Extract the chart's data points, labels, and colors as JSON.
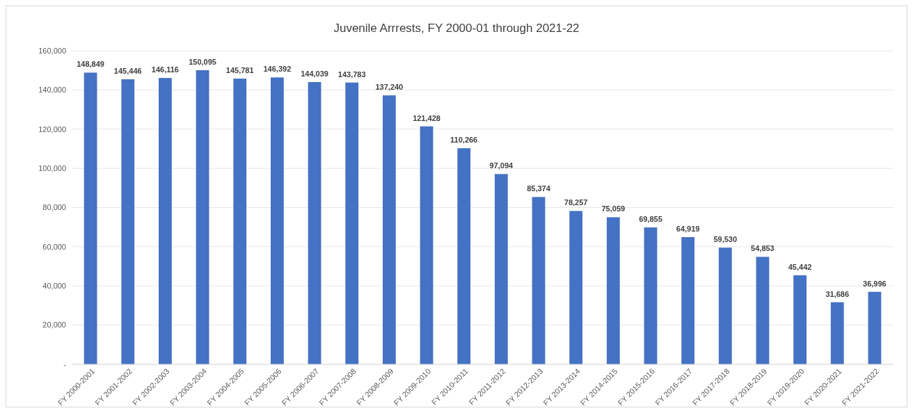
{
  "chart_data": {
    "type": "bar",
    "title": "Juvenile Arrrests, FY 2000-01 through 2021-22",
    "categories": [
      "FY 2000-2001",
      "FY 2001-2002",
      "FY 2002-2003",
      "FY 2003-2004",
      "FY 2004-2005",
      "FY 2005-2006",
      "FY 2006-2007",
      "FY 2007-2008",
      "FY 2008-2009",
      "FY 2009-2010",
      "FY 2010-2011",
      "FY 2011-2012",
      "FY 2012-2013",
      "FY 2013-2014",
      "FY 2014-2015",
      "FY 2015-2016",
      "FY 2016-2017",
      "FY 2017-2018",
      "FY 2018-2019",
      "FY 2019-2020",
      "FY 2020-2021",
      "FY 2021-2022"
    ],
    "values": [
      148849,
      145446,
      146116,
      150095,
      145781,
      146392,
      144039,
      143783,
      137240,
      121428,
      110266,
      97094,
      85374,
      78257,
      75059,
      69855,
      64919,
      59530,
      54853,
      45442,
      31686,
      36996
    ],
    "color": "#4472c4",
    "value_labels": [
      "148,849",
      "145,446",
      "146,116",
      "150,095",
      "145,781",
      "146,392",
      "144,039",
      "143,783",
      "137,240",
      "121,428",
      "110,266",
      "97,094",
      "85,374",
      "78,257",
      "75,059",
      "69,855",
      "64,919",
      "59,530",
      "54,853",
      "45,442",
      "31,686",
      "36,996"
    ],
    "ylim": [
      0,
      160000
    ],
    "yticks": [
      {
        "value": 0,
        "label": "-"
      },
      {
        "value": 20000,
        "label": "20,000"
      },
      {
        "value": 40000,
        "label": "40,000"
      },
      {
        "value": 60000,
        "label": "60,000"
      },
      {
        "value": 80000,
        "label": "80,000"
      },
      {
        "value": 100000,
        "label": "100,000"
      },
      {
        "value": 120000,
        "label": "120,000"
      },
      {
        "value": 140000,
        "label": "140,000"
      },
      {
        "value": 160000,
        "label": "160,000"
      }
    ],
    "grid": "y"
  }
}
